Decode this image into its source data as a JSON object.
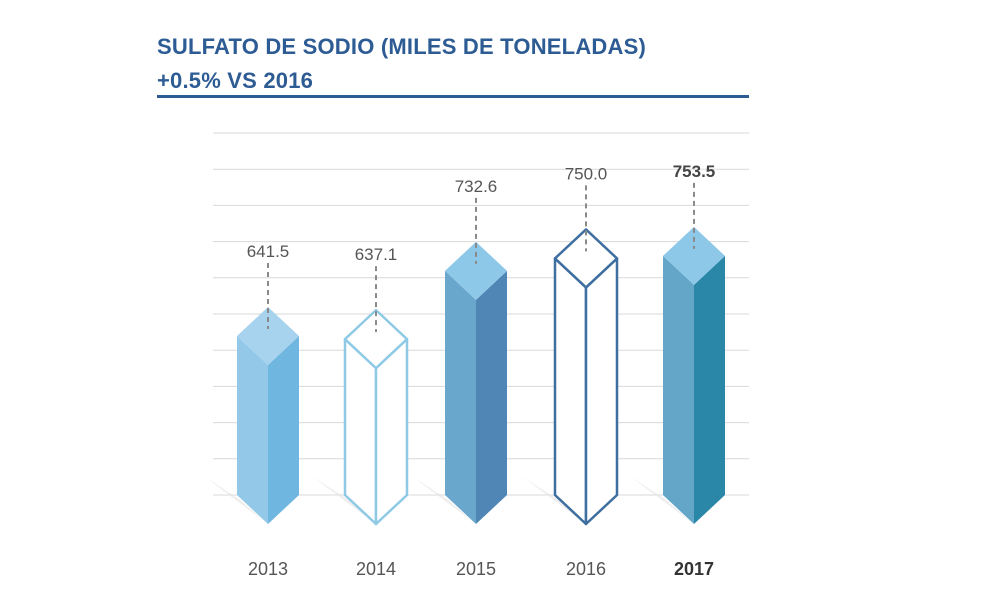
{
  "header": {
    "title": "SULFATO DE SODIO (MILES DE TONELADAS)",
    "subtitle": "+0.5% VS 2016"
  },
  "colors": {
    "title": "#2d5b94",
    "gridline": "#d9d9d9",
    "label": "#555555"
  },
  "chart_data": {
    "type": "bar",
    "title": "SULFATO DE SODIO (MILES DE TONELADAS)",
    "subtitle": "+0.5% VS 2016",
    "categories": [
      "2013",
      "2014",
      "2015",
      "2016",
      "2017"
    ],
    "values": [
      641.5,
      637.1,
      732.6,
      750.0,
      753.5
    ],
    "value_labels": [
      "641.5",
      "637.1",
      "732.6",
      "750.0",
      "753.5"
    ],
    "highlight": "2017",
    "grid": true,
    "bar_styles": [
      {
        "style": "filled",
        "front": "#93c8e8",
        "side": "#6fb6e0",
        "top": "#a8d3ee"
      },
      {
        "style": "outline",
        "stroke": "#8ecae6"
      },
      {
        "style": "filled",
        "front": "#69a7cc",
        "side": "#4f86b5",
        "top": "#8ec8e8"
      },
      {
        "style": "outline",
        "stroke": "#3f6fa0"
      },
      {
        "style": "filled",
        "front": "#63a6c8",
        "side": "#2b87a8",
        "top": "#8ec8e8"
      }
    ]
  }
}
